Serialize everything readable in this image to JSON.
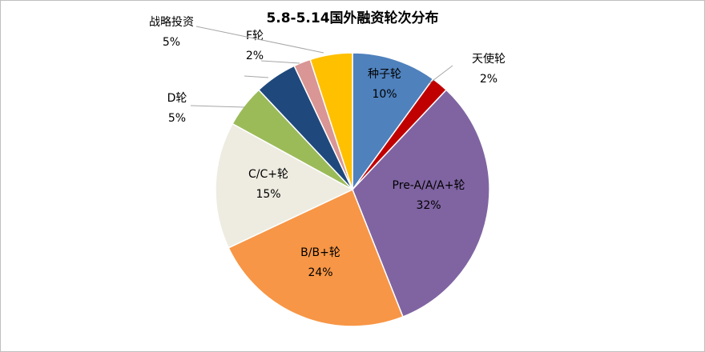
{
  "chart_data": {
    "type": "pie",
    "title": "5.8-5.14国外融资轮次分布",
    "slices": [
      {
        "name": "种子轮",
        "value": 10,
        "label": "10%",
        "color": "#4f81bd"
      },
      {
        "name": "天使轮",
        "value": 2,
        "label": "2%",
        "color": "#c00000"
      },
      {
        "name": "Pre-A/A/A+轮",
        "value": 32,
        "label": "32%",
        "color": "#8064a2"
      },
      {
        "name": "B/B+轮",
        "value": 24,
        "label": "24%",
        "color": "#f79646"
      },
      {
        "name": "C/C+轮",
        "value": 15,
        "label": "15%",
        "color": "#eeece1"
      },
      {
        "name": "D轮",
        "value": 5,
        "label": "5%",
        "color": "#9bbb59"
      },
      {
        "name": "",
        "value": 5,
        "label": "",
        "color": "#1f497d"
      },
      {
        "name": "F轮",
        "value": 2,
        "label": "2%",
        "color": "#d99694"
      },
      {
        "name": "战略投资",
        "value": 5,
        "label": "5%",
        "color": "#ffc000"
      }
    ]
  }
}
